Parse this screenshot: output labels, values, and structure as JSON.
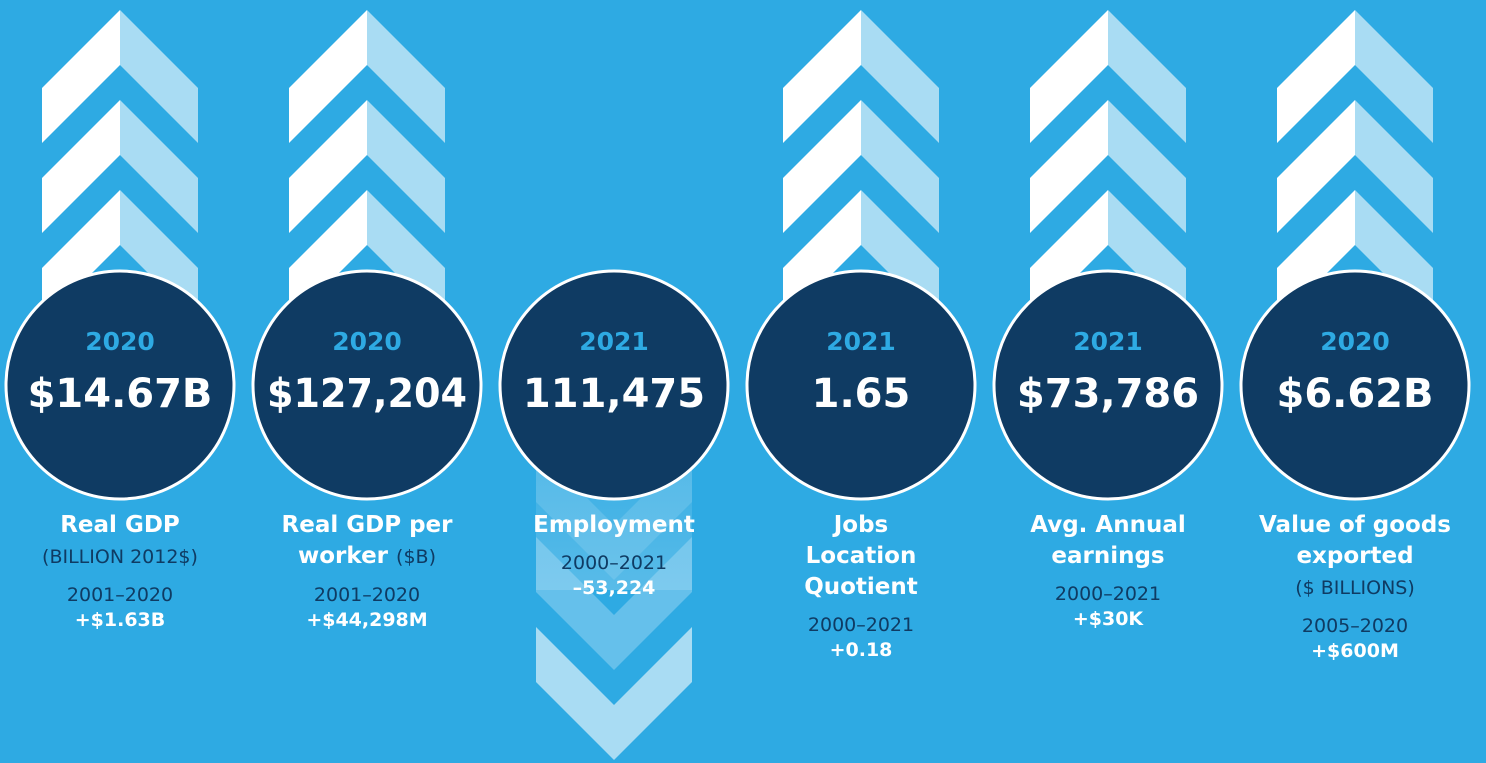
{
  "items": [
    {
      "year": "2020",
      "value": "$14.67B",
      "label": [
        "Real GDP"
      ],
      "sublabel": "(BILLION 2012$)",
      "period": "2001–2020",
      "change": "+$1.63B",
      "arrow": "up"
    },
    {
      "year": "2020",
      "value": "$127,204",
      "label": [
        "Real GDP per",
        "worker"
      ],
      "sublabel": "($B)",
      "period": "2001–2020",
      "change": "+$44,298M",
      "arrow": "up"
    },
    {
      "year": "2021",
      "value": "111,475",
      "label": [
        "Employment"
      ],
      "period": "2000–2021",
      "change": "–53,224",
      "arrow": "down"
    },
    {
      "year": "2021",
      "value": "1.65",
      "label": [
        "Jobs",
        "Location",
        "Quotient"
      ],
      "period": "2000–2021",
      "change": "+0.18",
      "arrow": "up"
    },
    {
      "year": "2021",
      "value": "$73,786",
      "label": [
        "Avg. Annual",
        "earnings"
      ],
      "period": "2000–2021",
      "change": "+$30K",
      "arrow": "up"
    },
    {
      "year": "2020",
      "value": "$6.62B",
      "label": [
        "Value of goods",
        "exported"
      ],
      "sublabel": "($ BILLIONS)",
      "period": "2005–2020",
      "change": "+$600M",
      "arrow": "up"
    }
  ]
}
